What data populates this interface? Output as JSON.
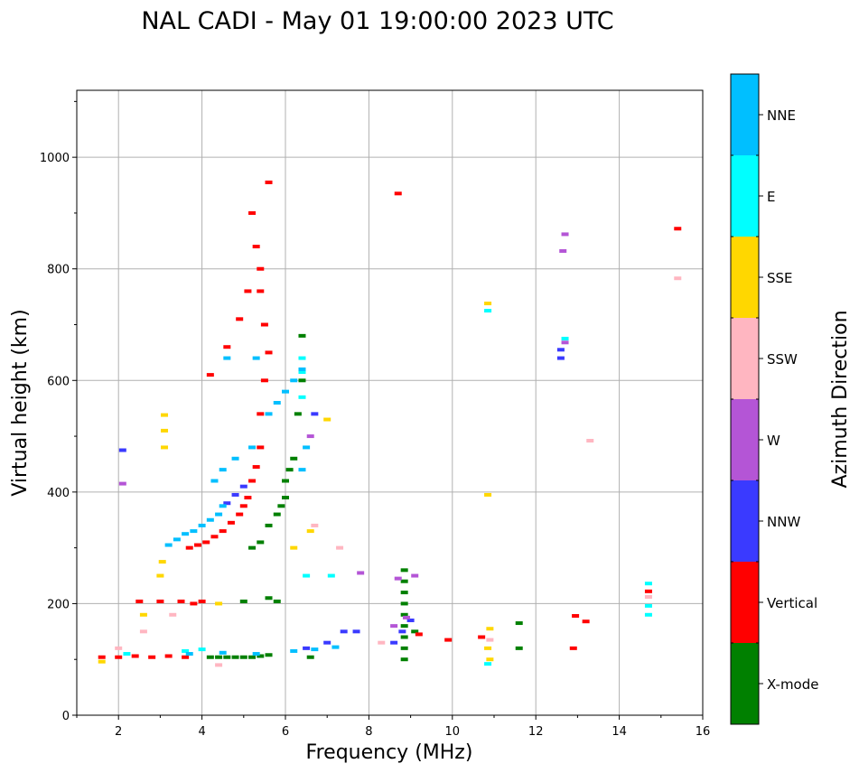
{
  "chart_data": {
    "type": "scatter",
    "title": "NAL CADI - May 01 19:00:00 2023 UTC",
    "xlabel": "Frequency (MHz)",
    "ylabel": "Virtual height (km)",
    "xlim": [
      1,
      16
    ],
    "ylim": [
      0,
      1120
    ],
    "xticks": [
      2,
      4,
      6,
      8,
      10,
      12,
      14,
      16
    ],
    "yticks": [
      0,
      200,
      400,
      600,
      800,
      1000
    ],
    "grid": true,
    "colorbar": {
      "label": "Azimuth Direction",
      "categories": [
        {
          "name": "X-mode",
          "color": "#008000"
        },
        {
          "name": "Vertical",
          "color": "#ff0000"
        },
        {
          "name": "NNW",
          "color": "#3a3aff"
        },
        {
          "name": "W",
          "color": "#b455d6"
        },
        {
          "name": "SSW",
          "color": "#ffb6c1"
        },
        {
          "name": "SSE",
          "color": "#ffd700"
        },
        {
          "name": "E",
          "color": "#00ffff"
        },
        {
          "name": "NNE",
          "color": "#00bfff"
        }
      ]
    },
    "series": [
      {
        "name": "X-mode",
        "points": [
          [
            4.2,
            104
          ],
          [
            4.4,
            104
          ],
          [
            4.6,
            104
          ],
          [
            4.8,
            104
          ],
          [
            5.0,
            104
          ],
          [
            5.2,
            104
          ],
          [
            5.4,
            106
          ],
          [
            5.6,
            108
          ],
          [
            5.2,
            300
          ],
          [
            5.4,
            310
          ],
          [
            5.6,
            340
          ],
          [
            5.8,
            360
          ],
          [
            5.9,
            375
          ],
          [
            6.0,
            390
          ],
          [
            6.0,
            420
          ],
          [
            6.1,
            440
          ],
          [
            6.2,
            460
          ],
          [
            6.3,
            540
          ],
          [
            6.4,
            600
          ],
          [
            6.4,
            680
          ],
          [
            6.6,
            104
          ],
          [
            5.0,
            204
          ],
          [
            5.6,
            210
          ],
          [
            5.8,
            204
          ],
          [
            8.85,
            100
          ],
          [
            8.85,
            120
          ],
          [
            8.85,
            140
          ],
          [
            8.85,
            160
          ],
          [
            8.85,
            180
          ],
          [
            8.85,
            200
          ],
          [
            8.85,
            220
          ],
          [
            8.85,
            240
          ],
          [
            8.85,
            260
          ],
          [
            9.1,
            150
          ],
          [
            11.6,
            120
          ],
          [
            11.6,
            165
          ]
        ]
      },
      {
        "name": "Vertical",
        "points": [
          [
            1.6,
            104
          ],
          [
            2.0,
            104
          ],
          [
            2.4,
            106
          ],
          [
            2.8,
            104
          ],
          [
            3.2,
            106
          ],
          [
            3.6,
            104
          ],
          [
            3.8,
            200
          ],
          [
            3.5,
            204
          ],
          [
            3.0,
            204
          ],
          [
            2.5,
            204
          ],
          [
            4.0,
            204
          ],
          [
            3.7,
            300
          ],
          [
            3.9,
            305
          ],
          [
            4.1,
            310
          ],
          [
            4.3,
            320
          ],
          [
            4.5,
            330
          ],
          [
            4.7,
            345
          ],
          [
            4.9,
            360
          ],
          [
            5.0,
            375
          ],
          [
            5.1,
            390
          ],
          [
            5.2,
            420
          ],
          [
            5.3,
            445
          ],
          [
            5.4,
            480
          ],
          [
            5.4,
            540
          ],
          [
            5.5,
            600
          ],
          [
            5.6,
            650
          ],
          [
            5.5,
            700
          ],
          [
            5.4,
            760
          ],
          [
            5.4,
            800
          ],
          [
            5.3,
            840
          ],
          [
            5.2,
            900
          ],
          [
            5.6,
            955
          ],
          [
            4.2,
            610
          ],
          [
            4.6,
            660
          ],
          [
            4.9,
            710
          ],
          [
            5.1,
            760
          ],
          [
            8.7,
            935
          ],
          [
            9.2,
            145
          ],
          [
            9.9,
            135
          ],
          [
            10.7,
            140
          ],
          [
            12.9,
            120
          ],
          [
            12.95,
            178
          ],
          [
            13.2,
            168
          ],
          [
            14.7,
            222
          ],
          [
            15.4,
            872
          ]
        ]
      },
      {
        "name": "NNW",
        "points": [
          [
            2.1,
            475
          ],
          [
            4.6,
            380
          ],
          [
            4.8,
            395
          ],
          [
            5.0,
            410
          ],
          [
            6.7,
            540
          ],
          [
            6.5,
            120
          ],
          [
            7.0,
            130
          ],
          [
            7.4,
            150
          ],
          [
            7.7,
            150
          ],
          [
            8.6,
            130
          ],
          [
            8.8,
            150
          ],
          [
            9.0,
            170
          ],
          [
            12.6,
            640
          ],
          [
            12.6,
            655
          ]
        ]
      },
      {
        "name": "W",
        "points": [
          [
            2.1,
            415
          ],
          [
            6.6,
            500
          ],
          [
            7.8,
            255
          ],
          [
            8.7,
            245
          ],
          [
            9.1,
            250
          ],
          [
            8.6,
            160
          ],
          [
            8.9,
            175
          ],
          [
            12.7,
            668
          ],
          [
            12.7,
            862
          ],
          [
            12.65,
            832
          ]
        ]
      },
      {
        "name": "SSW",
        "points": [
          [
            2.0,
            120
          ],
          [
            2.6,
            150
          ],
          [
            3.3,
            180
          ],
          [
            4.4,
            90
          ],
          [
            6.7,
            340
          ],
          [
            7.3,
            300
          ],
          [
            8.3,
            130
          ],
          [
            10.9,
            135
          ],
          [
            13.3,
            492
          ],
          [
            14.7,
            212
          ],
          [
            15.4,
            783
          ]
        ]
      },
      {
        "name": "SSE",
        "points": [
          [
            1.6,
            96
          ],
          [
            2.6,
            180
          ],
          [
            3.0,
            250
          ],
          [
            3.05,
            275
          ],
          [
            3.1,
            480
          ],
          [
            3.1,
            510
          ],
          [
            3.1,
            538
          ],
          [
            4.4,
            200
          ],
          [
            6.2,
            300
          ],
          [
            6.6,
            330
          ],
          [
            7.0,
            530
          ],
          [
            10.85,
            395
          ],
          [
            10.85,
            120
          ],
          [
            10.9,
            155
          ],
          [
            10.9,
            100
          ],
          [
            10.85,
            738
          ]
        ]
      },
      {
        "name": "E",
        "points": [
          [
            2.2,
            110
          ],
          [
            3.6,
            115
          ],
          [
            4.0,
            118
          ],
          [
            6.4,
            570
          ],
          [
            6.4,
            615
          ],
          [
            6.4,
            640
          ],
          [
            6.5,
            250
          ],
          [
            7.1,
            250
          ],
          [
            10.85,
            92
          ],
          [
            10.85,
            725
          ],
          [
            12.7,
            675
          ],
          [
            14.7,
            180
          ],
          [
            14.7,
            236
          ],
          [
            14.7,
            196
          ]
        ]
      },
      {
        "name": "NNE",
        "points": [
          [
            3.2,
            305
          ],
          [
            3.4,
            315
          ],
          [
            3.6,
            325
          ],
          [
            3.8,
            330
          ],
          [
            4.0,
            340
          ],
          [
            4.2,
            350
          ],
          [
            4.4,
            360
          ],
          [
            4.5,
            375
          ],
          [
            4.3,
            420
          ],
          [
            4.5,
            440
          ],
          [
            4.8,
            460
          ],
          [
            5.2,
            480
          ],
          [
            5.6,
            540
          ],
          [
            5.8,
            560
          ],
          [
            6.0,
            580
          ],
          [
            6.2,
            600
          ],
          [
            6.4,
            620
          ],
          [
            6.5,
            480
          ],
          [
            6.4,
            440
          ],
          [
            3.7,
            110
          ],
          [
            4.5,
            112
          ],
          [
            5.3,
            110
          ],
          [
            6.2,
            115
          ],
          [
            6.7,
            118
          ],
          [
            7.2,
            122
          ],
          [
            5.3,
            640
          ],
          [
            4.6,
            640
          ]
        ]
      }
    ]
  }
}
